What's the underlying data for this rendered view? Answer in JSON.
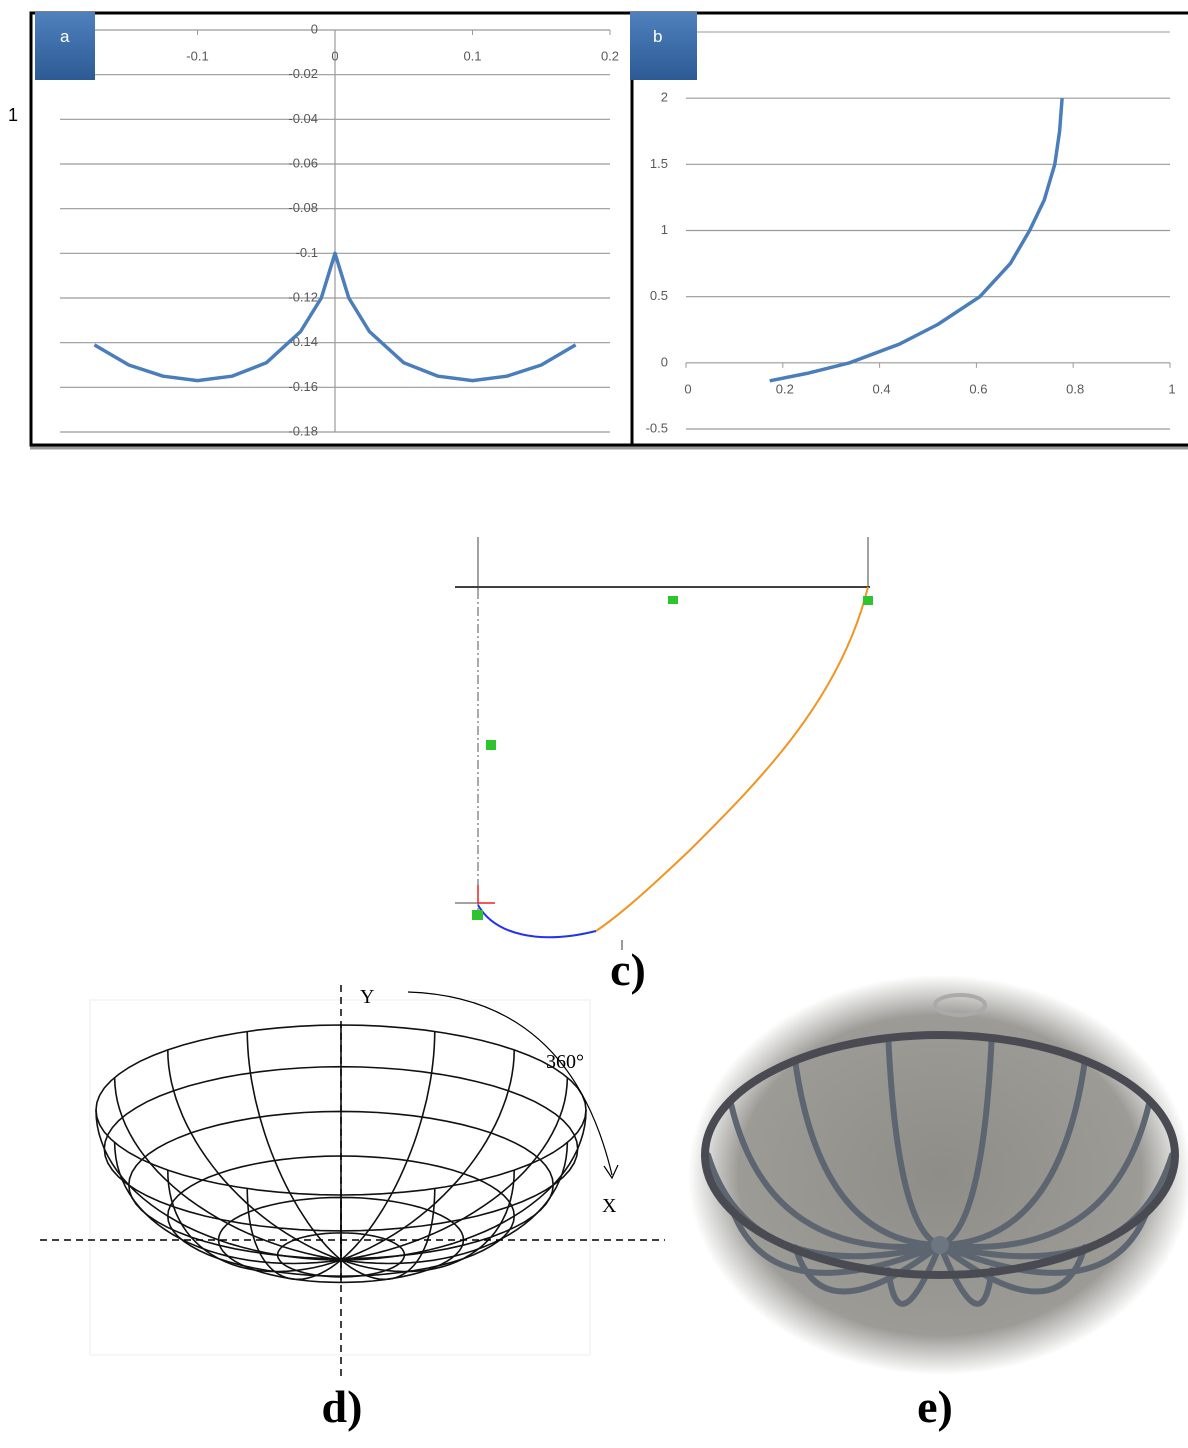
{
  "side_label": "1",
  "chart_data": [
    {
      "type": "line",
      "panel_label": "a",
      "x": [
        -0.175,
        -0.15,
        -0.125,
        -0.1,
        -0.075,
        -0.05,
        -0.025,
        -0.01,
        0,
        0.01,
        0.025,
        0.05,
        0.075,
        0.1,
        0.125,
        0.15,
        0.175
      ],
      "series": [
        {
          "color": "#4a7ebb",
          "values": [
            -0.141,
            -0.15,
            -0.155,
            -0.157,
            -0.155,
            -0.149,
            -0.135,
            -0.12,
            -0.1,
            -0.12,
            -0.135,
            -0.149,
            -0.155,
            -0.157,
            -0.155,
            -0.15,
            -0.141
          ]
        }
      ],
      "xlim": [
        -0.2,
        0.2
      ],
      "xticks": [
        -0.1,
        0,
        0.1,
        0.2
      ],
      "ylim": [
        -0.18,
        0
      ],
      "yticks": [
        0,
        -0.02,
        -0.04,
        -0.06,
        -0.08,
        -0.1,
        -0.12,
        -0.14,
        -0.16,
        -0.18
      ],
      "grid": true
    },
    {
      "type": "line",
      "panel_label": "b",
      "x": [
        0.173,
        0.25,
        0.338,
        0.44,
        0.52,
        0.607,
        0.67,
        0.71,
        0.74,
        0.762,
        0.772,
        0.777
      ],
      "series": [
        {
          "color": "#4a7ebb",
          "values": [
            -0.136,
            -0.08,
            0,
            0.14,
            0.29,
            0.5,
            0.75,
            1.0,
            1.23,
            1.5,
            1.75,
            2
          ]
        }
      ],
      "xlim": [
        0,
        1
      ],
      "xticks": [
        0,
        0.2,
        0.4,
        0.6,
        0.8,
        1
      ],
      "ylim": [
        -0.5,
        2.5
      ],
      "yticks": [
        -0.5,
        0,
        0.5,
        1,
        1.5,
        2
      ],
      "grid": true
    }
  ],
  "sketch": {
    "label": "c)"
  },
  "wireframe": {
    "label": "d)",
    "y_axis": "Y",
    "x_axis": "X",
    "angle": "360°"
  },
  "photo": {
    "label": "e)"
  }
}
